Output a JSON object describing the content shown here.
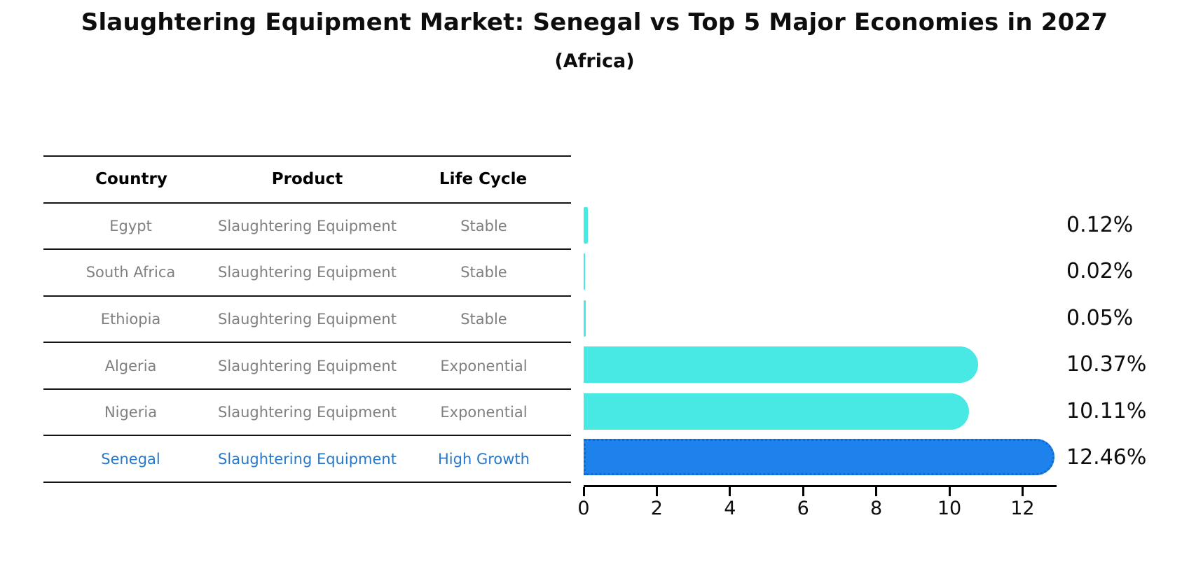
{
  "chart": {
    "title": "Slaughtering Equipment Market: Senegal vs Top 5 Major Economies in 2027",
    "subtitle": "(Africa)"
  },
  "table": {
    "headers": {
      "country": "Country",
      "product": "Product",
      "life_cycle": "Life Cycle"
    },
    "rows": [
      {
        "country": "Egypt",
        "product": "Slaughtering Equipment",
        "life_cycle": "Stable"
      },
      {
        "country": "South Africa",
        "product": "Slaughtering Equipment",
        "life_cycle": "Stable"
      },
      {
        "country": "Ethiopia",
        "product": "Slaughtering Equipment",
        "life_cycle": "Stable"
      },
      {
        "country": "Algeria",
        "product": "Slaughtering Equipment",
        "life_cycle": "Exponential"
      },
      {
        "country": "Nigeria",
        "product": "Slaughtering Equipment",
        "life_cycle": "Exponential"
      },
      {
        "country": "Senegal",
        "product": "Slaughtering Equipment",
        "life_cycle": "High Growth"
      }
    ]
  },
  "chart_data": {
    "type": "bar",
    "orientation": "horizontal",
    "title": "Slaughtering Equipment Market: Senegal vs Top 5 Major Economies in 2027 (Africa)",
    "categories": [
      "Egypt",
      "South Africa",
      "Ethiopia",
      "Algeria",
      "Nigeria",
      "Senegal"
    ],
    "values": [
      0.12,
      0.02,
      0.05,
      10.37,
      10.11,
      12.46
    ],
    "value_labels": [
      "0.12%",
      "0.02%",
      "0.05%",
      "10.37%",
      "10.11%",
      "12.46%"
    ],
    "x_ticks": [
      0,
      2,
      4,
      6,
      8,
      10,
      12
    ],
    "xlim": [
      0,
      12.9
    ],
    "grid": false,
    "legend": false,
    "highlight_index": 5,
    "colors": {
      "bar": "#48e8e4",
      "highlight": "#1e82ec",
      "highlight_border": "#0d6bd3",
      "highlight_text": "#2878c8"
    }
  }
}
